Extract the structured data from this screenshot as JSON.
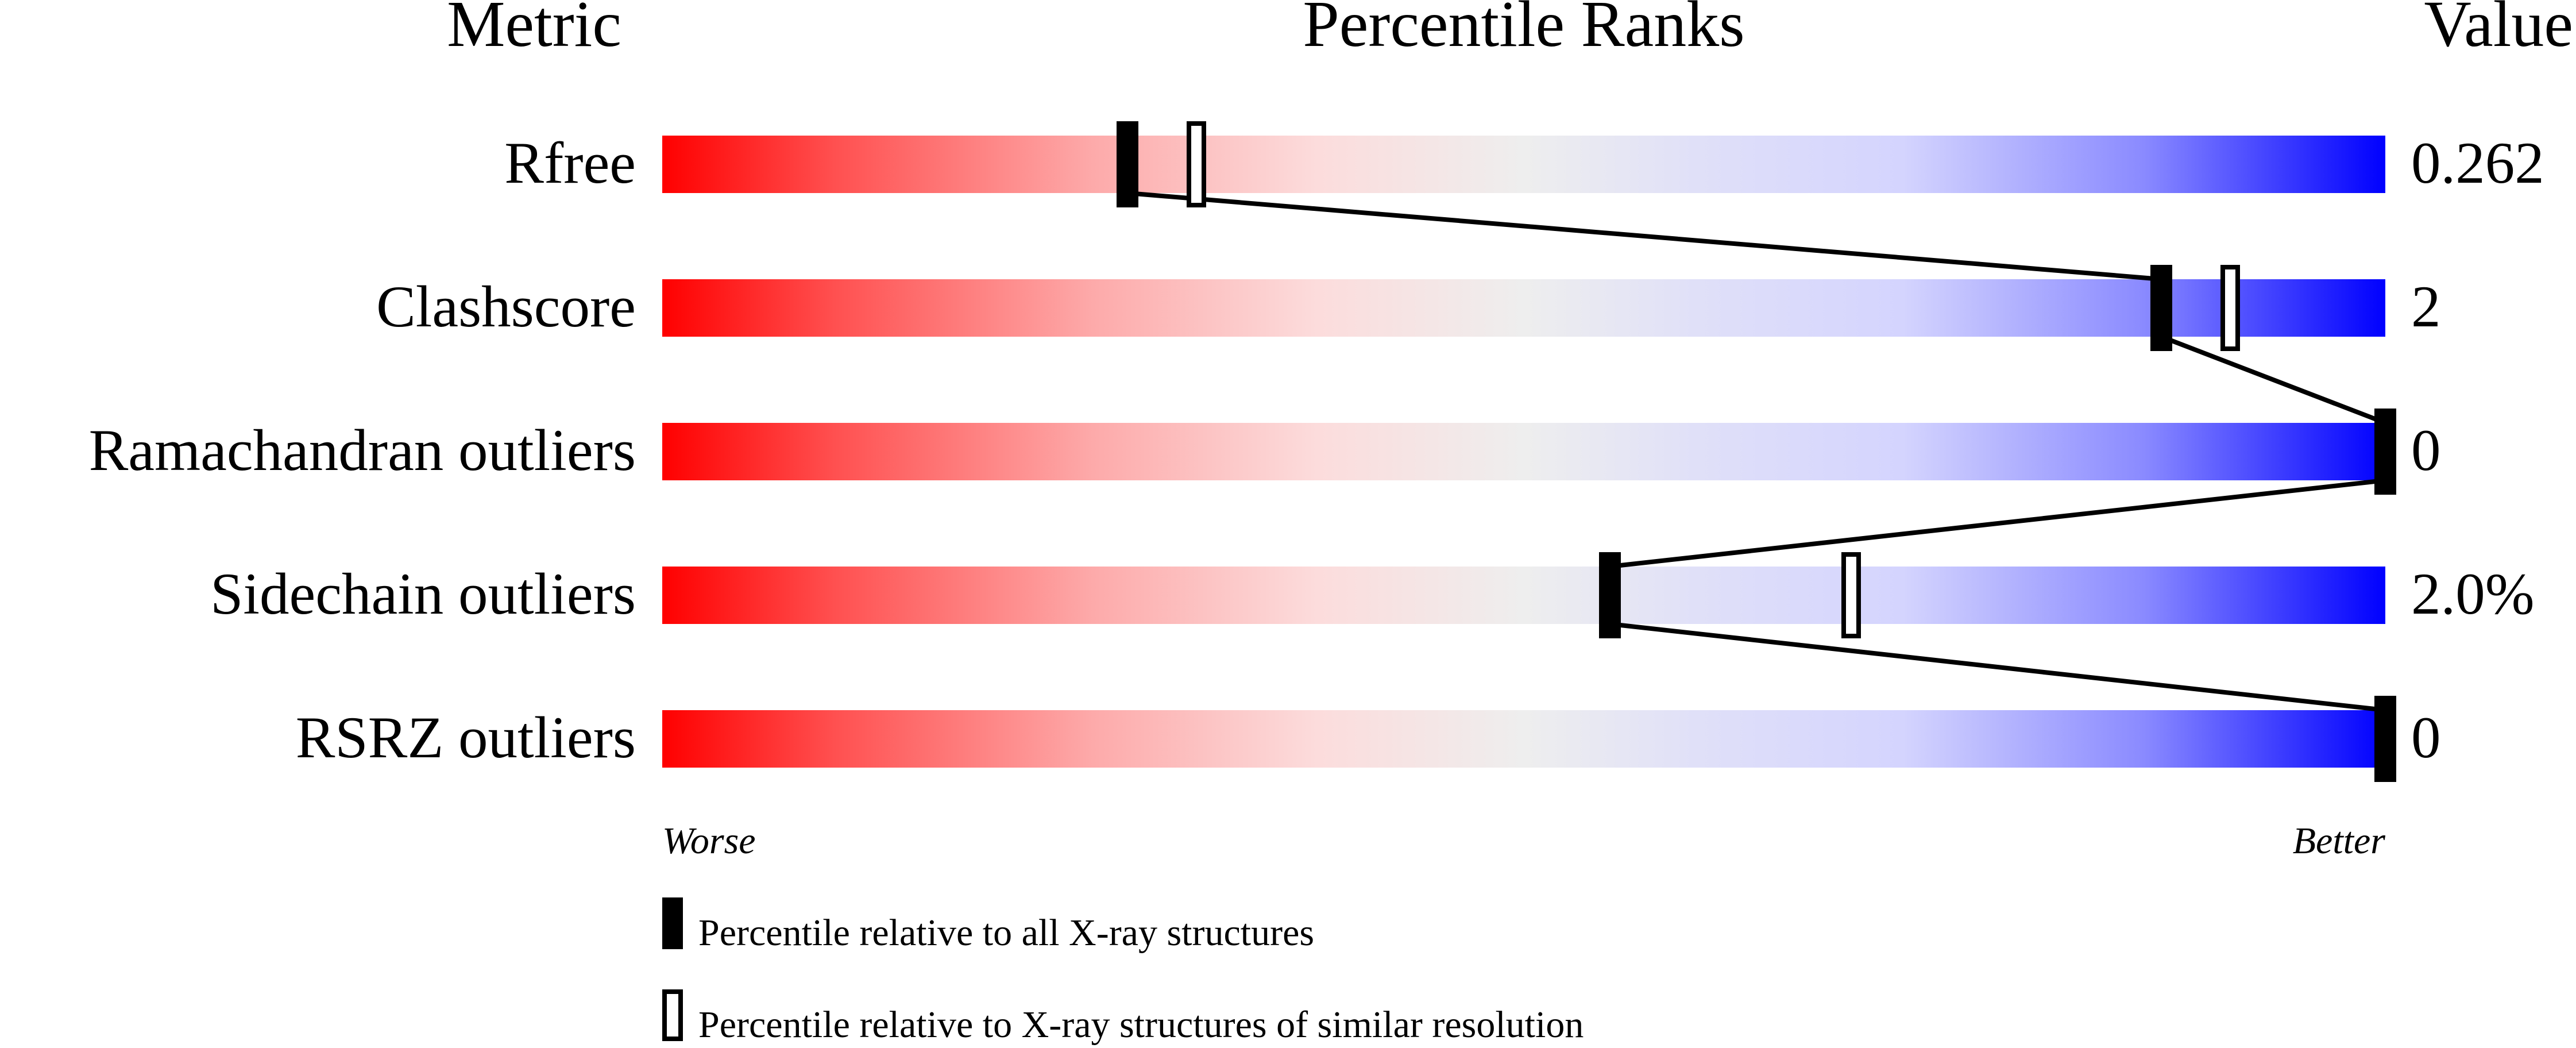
{
  "chart_data": {
    "type": "percentile-bar",
    "headers": {
      "metric": "Metric",
      "ranks": "Percentile Ranks",
      "value": "Value"
    },
    "xlim": [
      0,
      100
    ],
    "metrics": [
      {
        "name": "Rfree",
        "value": "0.262",
        "percentile_all": 27,
        "percentile_similar": 31
      },
      {
        "name": "Clashscore",
        "value": "2",
        "percentile_all": 87,
        "percentile_similar": 91
      },
      {
        "name": "Ramachandran outliers",
        "value": "0",
        "percentile_all": 100,
        "percentile_similar": 100
      },
      {
        "name": "Sidechain outliers",
        "value": "2.0%",
        "percentile_all": 55,
        "percentile_similar": 69
      },
      {
        "name": "RSRZ outliers",
        "value": "0",
        "percentile_all": 100,
        "percentile_similar": null
      }
    ],
    "axis_labels": {
      "left": "Worse",
      "right": "Better"
    },
    "legend": [
      {
        "marker": "filled",
        "label": "Percentile relative to all X-ray structures"
      },
      {
        "marker": "open",
        "label": "Percentile relative to X-ray structures of similar resolution"
      }
    ],
    "gradient_colors": {
      "worse": "#ff0000",
      "middle": "#eeeeee",
      "better": "#0000ff"
    }
  }
}
